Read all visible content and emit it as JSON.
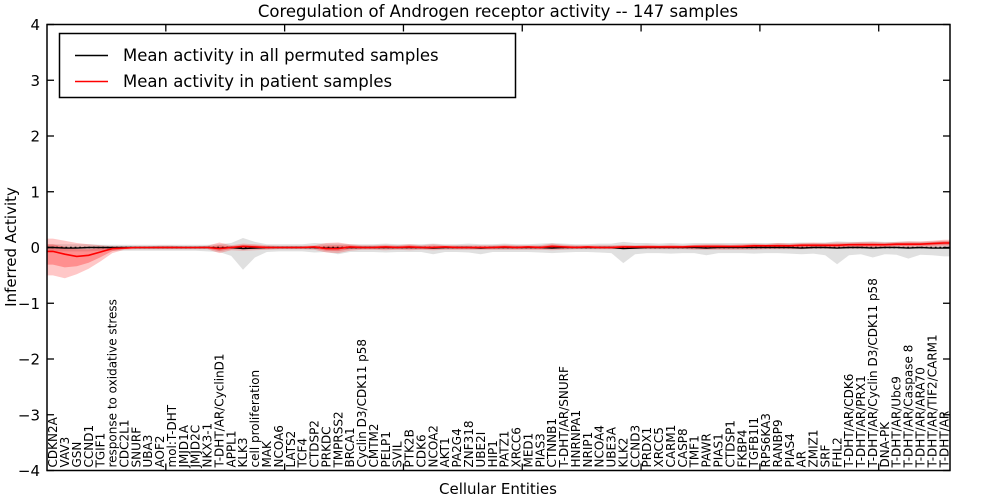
{
  "chart_data": {
    "type": "line",
    "title": "Coregulation of Androgen receptor activity -- 147 samples",
    "xlabel": "Cellular Entities",
    "ylabel": "Inferred Activity",
    "ylim": [
      -4,
      4
    ],
    "yticks": [
      4,
      3,
      2,
      1,
      0,
      -1,
      -2,
      -3,
      -4
    ],
    "yticklabels": [
      "4",
      "3",
      "2",
      "1",
      "0",
      "−1",
      "−2",
      "−3",
      "−4"
    ],
    "x_major_tick_interval": 10,
    "grid": false,
    "legend_position": "upper left",
    "zero_line_style": "dotted",
    "colors": {
      "permuted_line": "#000000",
      "patient_line": "#ff0000",
      "permuted_band": "#bbbbbb",
      "patient_band": "#ff0000"
    },
    "categories": [
      "CDKN2A",
      "VAV3",
      "GSN",
      "CCND1",
      "TGIF1",
      "response to oxidative stress",
      "CDC2L1",
      "SNURF",
      "UBA3",
      "AOF2",
      "mol:T-DHT",
      "JMJD1A",
      "JMJD2C",
      "NKX3-1",
      "T-DHT/AR/CyclinD1",
      "APPL1",
      "KLK3",
      "cell proliferation",
      "MAK",
      "NCOA6",
      "LATS2",
      "TCF4",
      "CTDSP2",
      "PRKDC",
      "TMPRSS2",
      "BRCA1",
      "Cyclin D3/CDK11 p58",
      "CMTM2",
      "PELP1",
      "SVIL",
      "PTK2B",
      "CDK6",
      "NCOA2",
      "AKT1",
      "PA2G4",
      "ZNF318",
      "UBE2I",
      "HIP1",
      "PATZ1",
      "XRCC6",
      "MED1",
      "PIAS3",
      "CTNNB1",
      "T-DHT/AR/SNURF",
      "HNRNPA1",
      "NRIP1",
      "NCOA4",
      "UBE3A",
      "KLK2",
      "CCND3",
      "PRDX1",
      "XRCC5",
      "CARM1",
      "CASP8",
      "TMF1",
      "PAWR",
      "PIAS1",
      "CTDSP1",
      "FKBP4",
      "TGFB1I1",
      "RPS6KA3",
      "RANBP9",
      "PIAS4",
      "AR",
      "ZMIZ1",
      "SRF",
      "FHL2",
      "T-DHT/AR/CDK6",
      "T-DHT/AR/PRX1",
      "T-DHT/AR/Cyclin D3/CDK11 p58",
      "DNA-PK",
      "T-DHT/AR/Ubc9",
      "T-DHT/AR/Caspase 8",
      "T-DHT/AR/ARA70",
      "T-DHT/AR/TIF2/CARM1",
      "T-DHT/AR"
    ],
    "series": [
      {
        "name": "Mean activity in all permuted samples",
        "color": "#000000",
        "values": [
          0.0,
          -0.01,
          -0.01,
          0.0,
          0.0,
          0.0,
          0.0,
          0.0,
          0.0,
          0.0,
          0.0,
          0.0,
          0.0,
          0.0,
          -0.01,
          0.0,
          -0.02,
          -0.01,
          0.0,
          0.0,
          0.0,
          0.0,
          0.0,
          -0.01,
          -0.01,
          0.0,
          0.0,
          0.0,
          0.0,
          0.0,
          0.0,
          0.0,
          -0.01,
          0.0,
          0.0,
          0.0,
          -0.01,
          0.0,
          0.0,
          0.0,
          0.0,
          0.0,
          -0.01,
          0.0,
          0.0,
          0.0,
          0.0,
          0.0,
          -0.02,
          -0.01,
          0.0,
          0.0,
          0.0,
          0.0,
          0.0,
          -0.01,
          0.0,
          0.0,
          0.0,
          0.0,
          0.0,
          0.0,
          0.0,
          -0.01,
          0.0,
          0.0,
          -0.01,
          0.0,
          0.0,
          -0.01,
          0.0,
          0.0,
          -0.01,
          0.0,
          -0.01,
          -0.01
        ],
        "band_upper": [
          0.06,
          0.06,
          0.06,
          0.06,
          0.05,
          0.05,
          0.05,
          0.05,
          0.05,
          0.05,
          0.05,
          0.05,
          0.05,
          0.05,
          0.06,
          0.08,
          0.17,
          0.1,
          0.06,
          0.06,
          0.06,
          0.06,
          0.08,
          0.07,
          0.07,
          0.06,
          0.06,
          0.06,
          0.07,
          0.06,
          0.06,
          0.06,
          0.07,
          0.06,
          0.06,
          0.07,
          0.06,
          0.06,
          0.07,
          0.06,
          0.06,
          0.07,
          0.08,
          0.07,
          0.06,
          0.06,
          0.07,
          0.07,
          0.1,
          0.08,
          0.08,
          0.07,
          0.08,
          0.07,
          0.08,
          0.08,
          0.08,
          0.08,
          0.08,
          0.08,
          0.08,
          0.08,
          0.08,
          0.09,
          0.08,
          0.09,
          0.11,
          0.1,
          0.1,
          0.11,
          0.1,
          0.1,
          0.11,
          0.1,
          0.11,
          0.12
        ],
        "band_lower": [
          -0.07,
          -0.07,
          -0.07,
          -0.07,
          -0.06,
          -0.06,
          -0.06,
          -0.06,
          -0.06,
          -0.06,
          -0.06,
          -0.06,
          -0.06,
          -0.07,
          -0.08,
          -0.15,
          -0.4,
          -0.18,
          -0.08,
          -0.07,
          -0.07,
          -0.07,
          -0.09,
          -0.08,
          -0.12,
          -0.08,
          -0.08,
          -0.08,
          -0.09,
          -0.08,
          -0.08,
          -0.08,
          -0.12,
          -0.08,
          -0.08,
          -0.09,
          -0.12,
          -0.08,
          -0.08,
          -0.08,
          -0.08,
          -0.09,
          -0.1,
          -0.09,
          -0.08,
          -0.08,
          -0.09,
          -0.1,
          -0.28,
          -0.12,
          -0.1,
          -0.1,
          -0.11,
          -0.1,
          -0.1,
          -0.14,
          -0.1,
          -0.1,
          -0.1,
          -0.11,
          -0.1,
          -0.1,
          -0.11,
          -0.12,
          -0.11,
          -0.14,
          -0.3,
          -0.14,
          -0.12,
          -0.18,
          -0.12,
          -0.13,
          -0.2,
          -0.13,
          -0.14,
          -0.16
        ]
      },
      {
        "name": "Mean activity in patient samples",
        "color": "#ff0000",
        "values": [
          -0.07,
          -0.12,
          -0.16,
          -0.14,
          -0.08,
          -0.02,
          -0.01,
          0.0,
          0.0,
          0.0,
          0.0,
          0.0,
          0.0,
          0.0,
          -0.02,
          0.0,
          0.02,
          0.01,
          0.0,
          0.0,
          0.0,
          0.0,
          0.01,
          -0.02,
          -0.02,
          0.01,
          0.0,
          0.0,
          0.01,
          0.0,
          0.01,
          0.0,
          0.0,
          0.01,
          0.0,
          0.0,
          0.0,
          0.0,
          0.01,
          0.0,
          0.01,
          0.0,
          0.02,
          0.01,
          0.0,
          0.01,
          0.0,
          0.0,
          0.01,
          0.01,
          0.01,
          0.01,
          0.01,
          0.01,
          0.02,
          0.02,
          0.02,
          0.02,
          0.02,
          0.03,
          0.03,
          0.03,
          0.03,
          0.04,
          0.04,
          0.04,
          0.04,
          0.05,
          0.05,
          0.05,
          0.05,
          0.06,
          0.06,
          0.06,
          0.07,
          0.08
        ],
        "band_upper": [
          0.16,
          0.12,
          0.08,
          0.06,
          0.04,
          0.02,
          0.02,
          0.02,
          0.02,
          0.03,
          0.03,
          0.02,
          0.02,
          0.03,
          0.09,
          0.04,
          0.07,
          0.06,
          0.04,
          0.03,
          0.03,
          0.03,
          0.04,
          0.08,
          0.09,
          0.06,
          0.04,
          0.04,
          0.05,
          0.04,
          0.06,
          0.04,
          0.06,
          0.04,
          0.04,
          0.04,
          0.04,
          0.04,
          0.05,
          0.04,
          0.04,
          0.04,
          0.07,
          0.05,
          0.04,
          0.04,
          0.04,
          0.04,
          0.05,
          0.04,
          0.05,
          0.04,
          0.05,
          0.04,
          0.05,
          0.06,
          0.06,
          0.05,
          0.06,
          0.07,
          0.06,
          0.08,
          0.07,
          0.08,
          0.09,
          0.08,
          0.09,
          0.09,
          0.1,
          0.1,
          0.09,
          0.1,
          0.11,
          0.11,
          0.12,
          0.14
        ],
        "band_lower": [
          -0.5,
          -0.55,
          -0.48,
          -0.38,
          -0.25,
          -0.1,
          -0.04,
          -0.03,
          -0.03,
          -0.03,
          -0.03,
          -0.03,
          -0.03,
          -0.03,
          -0.1,
          -0.05,
          -0.06,
          -0.05,
          -0.04,
          -0.03,
          -0.03,
          -0.03,
          -0.04,
          -0.09,
          -0.1,
          -0.06,
          -0.04,
          -0.04,
          -0.05,
          -0.04,
          -0.05,
          -0.04,
          -0.05,
          -0.04,
          -0.04,
          -0.04,
          -0.04,
          -0.04,
          -0.04,
          -0.04,
          -0.04,
          -0.04,
          -0.05,
          -0.04,
          -0.03,
          -0.03,
          -0.03,
          -0.03,
          -0.03,
          -0.03,
          -0.03,
          -0.03,
          -0.03,
          -0.03,
          -0.04,
          -0.04,
          -0.04,
          -0.04,
          -0.04,
          -0.04,
          -0.03,
          -0.03,
          -0.03,
          -0.03,
          -0.02,
          -0.02,
          -0.02,
          -0.02,
          -0.02,
          -0.01,
          -0.01,
          0.0,
          0.0,
          0.01,
          0.01,
          0.02
        ]
      }
    ]
  }
}
